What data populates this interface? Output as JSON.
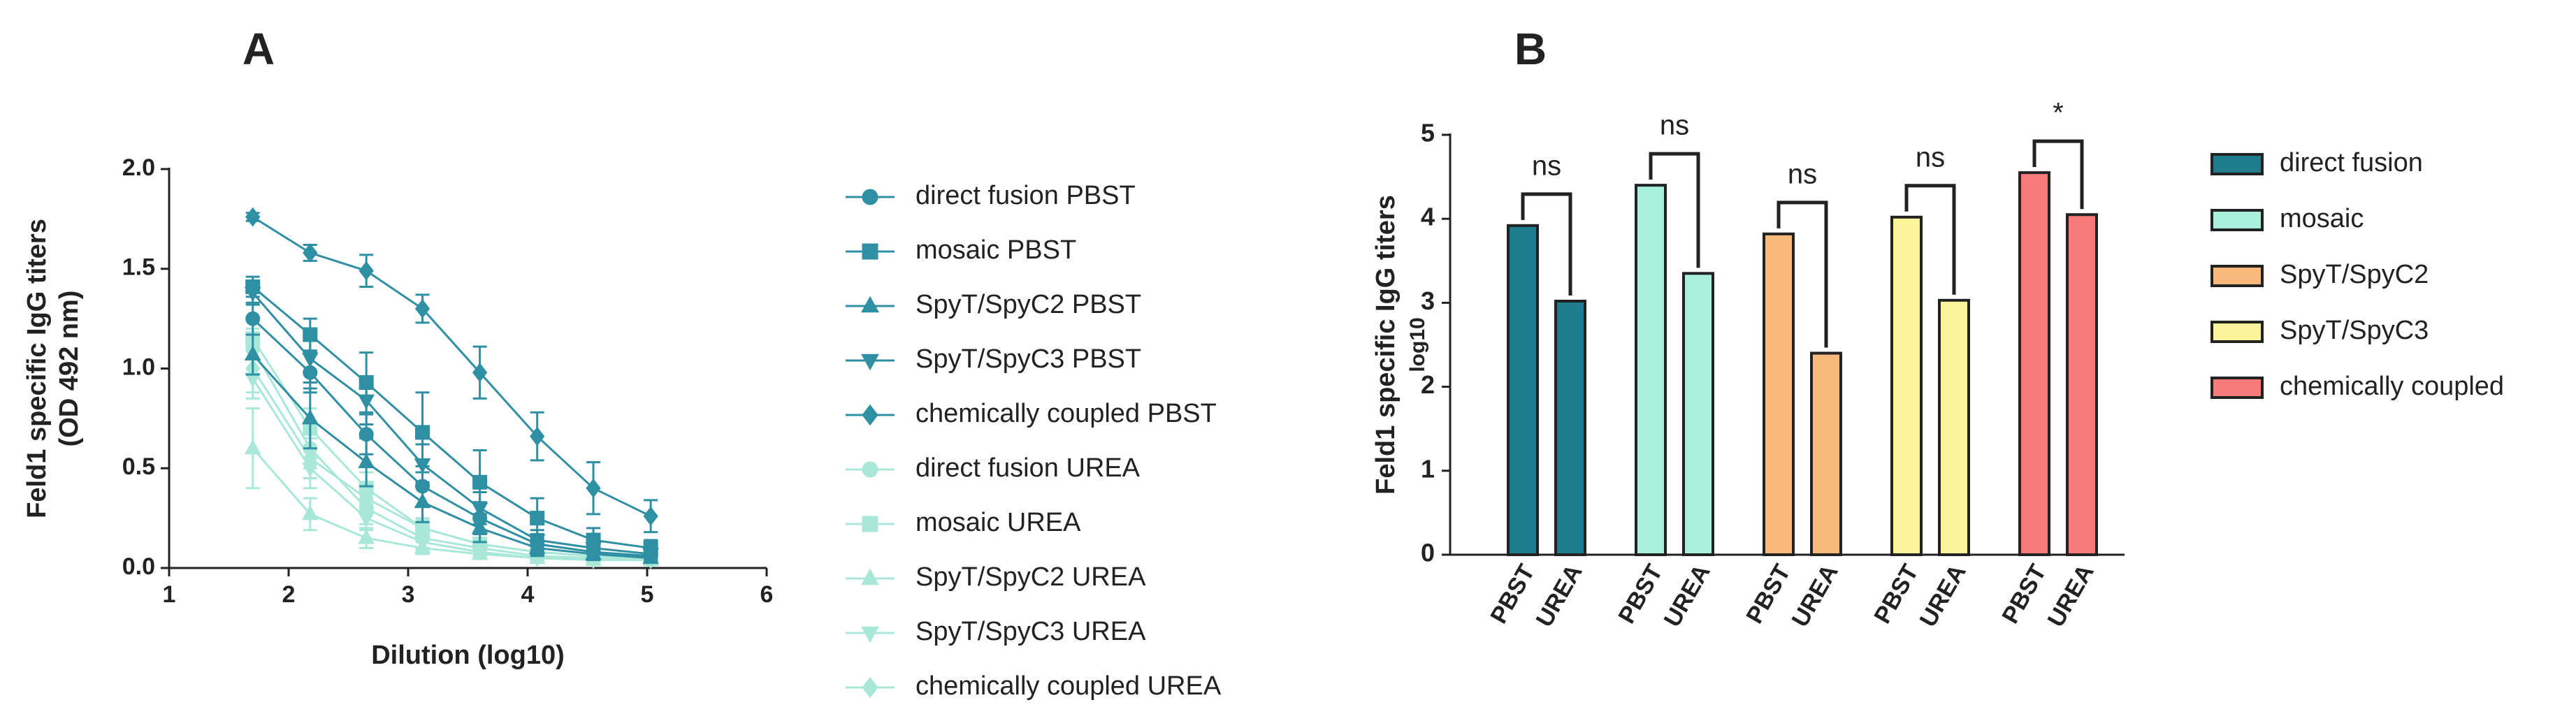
{
  "chart_data": [
    {
      "type": "line",
      "panel_label": "A",
      "x_label": "Dilution (log10)",
      "y_label": [
        "Feld1 specific IgG titers",
        "(OD 492 nm)"
      ],
      "x": [
        1.7,
        2.18,
        2.65,
        3.12,
        3.6,
        4.08,
        4.55,
        5.03
      ],
      "xlim": [
        1,
        6
      ],
      "xticks": [
        1,
        2,
        3,
        4,
        5,
        6
      ],
      "ylim": [
        0,
        2
      ],
      "yticks": [
        {
          "value": 0,
          "label": "0.0"
        },
        0.5,
        {
          "value": 1,
          "label": "1.0"
        },
        1.5,
        {
          "value": 2,
          "label": "2.0"
        }
      ],
      "series": [
        {
          "name": "direct fusion PBST",
          "color": "#2f8fa3",
          "marker": "circle",
          "values": [
            1.25,
            0.98,
            0.67,
            0.41,
            0.25,
            0.12,
            0.08,
            0.06
          ],
          "errors": [
            0.08,
            0.1,
            0.1,
            0.1,
            0.08,
            0.05,
            0.03,
            0.02
          ]
        },
        {
          "name": "mosaic PBST",
          "color": "#2f8fa3",
          "marker": "square",
          "values": [
            1.41,
            1.17,
            0.93,
            0.68,
            0.43,
            0.25,
            0.14,
            0.1
          ],
          "errors": [
            0.05,
            0.08,
            0.15,
            0.2,
            0.16,
            0.1,
            0.06,
            0.04
          ]
        },
        {
          "name": "SpyT/SpyC2 PBST",
          "color": "#2f8fa3",
          "marker": "triangle-up",
          "values": [
            1.07,
            0.75,
            0.53,
            0.33,
            0.2,
            0.1,
            0.07,
            0.05
          ],
          "errors": [
            0.1,
            0.15,
            0.12,
            0.1,
            0.07,
            0.04,
            0.03,
            0.02
          ]
        },
        {
          "name": "SpyT/SpyC3 PBST",
          "color": "#2f8fa3",
          "marker": "triangle-down",
          "values": [
            1.38,
            1.05,
            0.84,
            0.52,
            0.3,
            0.14,
            0.1,
            0.07
          ],
          "errors": [
            0.06,
            0.12,
            0.12,
            0.1,
            0.08,
            0.05,
            0.03,
            0.02
          ]
        },
        {
          "name": "chemically coupled PBST",
          "color": "#2f8fa3",
          "marker": "diamond",
          "values": [
            1.76,
            1.58,
            1.49,
            1.3,
            0.98,
            0.66,
            0.4,
            0.26
          ],
          "errors": [
            0.02,
            0.04,
            0.08,
            0.07,
            0.13,
            0.12,
            0.13,
            0.08
          ]
        },
        {
          "name": "direct fusion UREA",
          "color": "#a9e8d9",
          "marker": "circle",
          "values": [
            1.1,
            0.6,
            0.3,
            0.15,
            0.1,
            0.06,
            0.05,
            0.04
          ],
          "errors": [
            0.1,
            0.1,
            0.08,
            0.05,
            0.03,
            0.02,
            0.02,
            0.01
          ]
        },
        {
          "name": "mosaic UREA",
          "color": "#a9e8d9",
          "marker": "square",
          "values": [
            1.15,
            0.7,
            0.4,
            0.2,
            0.12,
            0.08,
            0.06,
            0.05
          ],
          "errors": [
            0.1,
            0.1,
            0.08,
            0.05,
            0.03,
            0.02,
            0.02,
            0.01
          ]
        },
        {
          "name": "SpyT/SpyC2 UREA",
          "color": "#a9e8d9",
          "marker": "triangle-up",
          "values": [
            0.6,
            0.27,
            0.15,
            0.1,
            0.07,
            0.05,
            0.04,
            0.04
          ],
          "errors": [
            0.2,
            0.08,
            0.05,
            0.03,
            0.02,
            0.01,
            0.01,
            0.01
          ]
        },
        {
          "name": "SpyT/SpyC3 UREA",
          "color": "#a9e8d9",
          "marker": "triangle-down",
          "values": [
            0.95,
            0.5,
            0.25,
            0.13,
            0.08,
            0.05,
            0.04,
            0.04
          ],
          "errors": [
            0.1,
            0.1,
            0.06,
            0.04,
            0.02,
            0.01,
            0.01,
            0.01
          ]
        },
        {
          "name": "chemically coupled UREA",
          "color": "#a9e8d9",
          "marker": "diamond",
          "values": [
            1.0,
            0.55,
            0.35,
            0.2,
            0.12,
            0.08,
            0.06,
            0.05
          ],
          "errors": [
            0.12,
            0.1,
            0.07,
            0.04,
            0.03,
            0.02,
            0.02,
            0.01
          ]
        }
      ]
    },
    {
      "type": "bar",
      "panel_label": "B",
      "y_label": "Feld1 specific IgG titers",
      "y_sublabel": "log10",
      "categories": [
        "PBST",
        "UREA"
      ],
      "ylim": [
        0,
        5
      ],
      "yticks": [
        0,
        1,
        2,
        3,
        4,
        5
      ],
      "series": [
        {
          "name": "direct fusion",
          "color": "#1f7b8e",
          "values": [
            3.92,
            3.02
          ],
          "significance": "ns"
        },
        {
          "name": "mosaic",
          "color": "#a8f0dc",
          "values": [
            4.4,
            3.35
          ],
          "significance": "ns"
        },
        {
          "name": "SpyT/SpyC2",
          "color": "#f9b97b",
          "values": [
            3.82,
            2.4
          ],
          "significance": "ns"
        },
        {
          "name": "SpyT/SpyC3",
          "color": "#fbf49b",
          "values": [
            4.02,
            3.03
          ],
          "significance": "ns"
        },
        {
          "name": "chemically coupled",
          "color": "#f77b7b",
          "values": [
            4.55,
            4.05
          ],
          "significance": "*"
        }
      ]
    }
  ]
}
